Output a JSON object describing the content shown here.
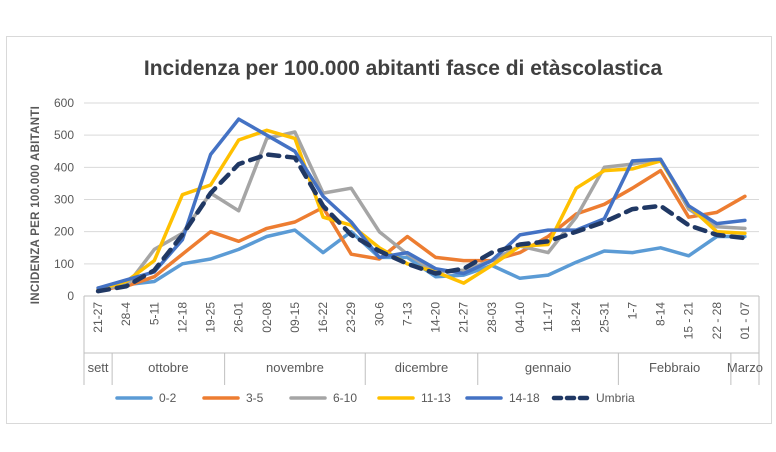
{
  "chart_data": {
    "type": "line",
    "title": "Incidenza per 100.000 abitanti fasce di etàscolastica",
    "ylabel": "INCIDENZA PER 100.000 ABITANTI",
    "xlabel": "",
    "ylim": [
      0,
      600
    ],
    "yticks": [
      0,
      100,
      200,
      300,
      400,
      500,
      600
    ],
    "grid": "horizontal",
    "legend_position": "bottom",
    "categories": [
      "21-27",
      "28-4",
      "5-11",
      "12-18",
      "19-25",
      "26-01",
      "02-08",
      "09-15",
      "16-22",
      "23-29",
      "30-6",
      "7-13",
      "14-20",
      "21-27",
      "28-03",
      "04-10",
      "11-17",
      "18-24",
      "25-31",
      "1-7",
      "8-14",
      "15 - 21",
      "22 - 28",
      "01 - 07"
    ],
    "groups": [
      {
        "label": "sett",
        "count": 1
      },
      {
        "label": "ottobre",
        "count": 4
      },
      {
        "label": "novembre",
        "count": 5
      },
      {
        "label": "dicembre",
        "count": 4
      },
      {
        "label": "gennaio",
        "count": 5
      },
      {
        "label": "Febbraio",
        "count": 4
      },
      {
        "label": "Marzo",
        "count": 1
      }
    ],
    "series": [
      {
        "name": "0-2",
        "color": "#5B9BD5",
        "dash": false,
        "values": [
          15,
          35,
          45,
          100,
          115,
          145,
          185,
          205,
          135,
          200,
          120,
          120,
          60,
          65,
          95,
          55,
          65,
          105,
          140,
          135,
          150,
          125,
          185,
          185
        ]
      },
      {
        "name": "3-5",
        "color": "#ED7D31",
        "dash": false,
        "values": [
          20,
          30,
          60,
          130,
          200,
          170,
          210,
          230,
          275,
          130,
          115,
          185,
          120,
          110,
          110,
          135,
          185,
          255,
          285,
          335,
          390,
          245,
          260,
          310
        ]
      },
      {
        "name": "6-10",
        "color": "#A5A5A5",
        "dash": false,
        "values": [
          25,
          30,
          145,
          195,
          320,
          265,
          490,
          510,
          320,
          335,
          200,
          130,
          75,
          80,
          110,
          155,
          135,
          245,
          400,
          410,
          425,
          270,
          215,
          210
        ]
      },
      {
        "name": "11-13",
        "color": "#FFC000",
        "dash": false,
        "values": [
          20,
          45,
          110,
          315,
          345,
          485,
          515,
          490,
          245,
          220,
          150,
          100,
          75,
          40,
          95,
          155,
          160,
          335,
          390,
          395,
          420,
          280,
          200,
          195
        ]
      },
      {
        "name": "14-18",
        "color": "#4472C4",
        "dash": false,
        "values": [
          25,
          50,
          75,
          175,
          440,
          550,
          500,
          450,
          310,
          230,
          120,
          135,
          85,
          70,
          110,
          190,
          205,
          205,
          240,
          420,
          425,
          280,
          225,
          235
        ]
      },
      {
        "name": "Umbria",
        "color": "#203864",
        "dash": true,
        "values": [
          15,
          30,
          80,
          190,
          320,
          410,
          440,
          430,
          280,
          190,
          140,
          100,
          70,
          85,
          135,
          160,
          170,
          200,
          230,
          270,
          280,
          220,
          190,
          180
        ]
      }
    ]
  }
}
